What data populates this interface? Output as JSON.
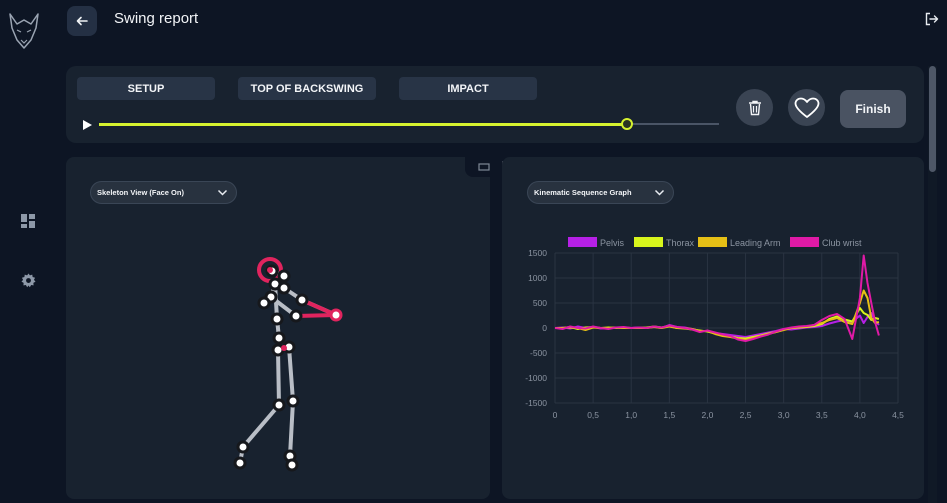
{
  "header": {
    "title": "Swing report"
  },
  "sidebar": {
    "logo": "wolf-logo",
    "items": [
      {
        "name": "dashboard",
        "icon": "dashboard-icon"
      },
      {
        "name": "settings",
        "icon": "gear-icon"
      }
    ]
  },
  "phases": [
    "SETUP",
    "TOP OF BACKSWING",
    "IMPACT"
  ],
  "playback": {
    "progress": 0.851
  },
  "actions": {
    "finish_label": "Finish",
    "delete_icon": "trash-icon",
    "favorite_icon": "heart-icon"
  },
  "skeleton_panel": {
    "view_label": "Skeleton View (Face On)"
  },
  "graph_panel": {
    "view_label": "Kinematic Sequence Graph"
  },
  "colors": {
    "accent": "#d6f22f",
    "pelvis": "#b620e6",
    "thorax": "#d8f51c",
    "leading_arm": "#e6c016",
    "club_wrist": "#e01aa6",
    "skeleton_joint": "#e0245e"
  },
  "chart_data": {
    "type": "line",
    "legend_position": "top",
    "grid": true,
    "xlim": [
      0,
      4.5
    ],
    "ylim": [
      -1500,
      1500
    ],
    "x_ticks": [
      "0",
      "0,5",
      "1,0",
      "1,5",
      "2,0",
      "2,5",
      "3,0",
      "3,5",
      "4,0",
      "4,5"
    ],
    "y_ticks": [
      "1500",
      "1000",
      "500",
      "0",
      "-500",
      "-1000",
      "-1500"
    ],
    "x": [
      0,
      0.1,
      0.2,
      0.3,
      0.4,
      0.5,
      0.6,
      0.7,
      0.8,
      0.9,
      1.0,
      1.1,
      1.2,
      1.3,
      1.4,
      1.5,
      1.6,
      1.7,
      1.8,
      1.9,
      2.0,
      2.1,
      2.2,
      2.3,
      2.4,
      2.5,
      2.6,
      2.7,
      2.8,
      2.9,
      3.0,
      3.1,
      3.2,
      3.3,
      3.4,
      3.5,
      3.6,
      3.7,
      3.8,
      3.9,
      4.0,
      4.05,
      4.1,
      4.15,
      4.2,
      4.25
    ],
    "series": [
      {
        "name": "Pelvis",
        "color": "#b620e6",
        "values": [
          0,
          10,
          -10,
          30,
          0,
          20,
          -10,
          0,
          10,
          0,
          0,
          10,
          0,
          20,
          0,
          60,
          20,
          10,
          -20,
          -60,
          -60,
          -100,
          -120,
          -140,
          -160,
          -180,
          -150,
          -120,
          -90,
          -60,
          -20,
          -30,
          -10,
          10,
          20,
          40,
          90,
          130,
          160,
          120,
          250,
          100,
          220,
          300,
          150,
          60
        ]
      },
      {
        "name": "Thorax",
        "color": "#d8f51c",
        "values": [
          0,
          0,
          20,
          -20,
          10,
          20,
          0,
          10,
          0,
          10,
          0,
          0,
          10,
          30,
          10,
          40,
          0,
          -10,
          -30,
          -50,
          -70,
          -110,
          -150,
          -170,
          -200,
          -210,
          -180,
          -150,
          -110,
          -80,
          -30,
          0,
          10,
          20,
          40,
          80,
          180,
          230,
          170,
          130,
          400,
          300,
          260,
          160,
          200,
          180
        ]
      },
      {
        "name": "Leading Arm",
        "color": "#e6c016",
        "values": [
          0,
          0,
          10,
          0,
          -40,
          10,
          0,
          0,
          10,
          0,
          0,
          0,
          0,
          20,
          0,
          30,
          0,
          0,
          -20,
          -60,
          -60,
          -120,
          -160,
          -180,
          -210,
          -240,
          -200,
          -160,
          -120,
          -80,
          -40,
          0,
          20,
          30,
          60,
          100,
          160,
          200,
          120,
          80,
          500,
          750,
          600,
          200,
          100,
          120
        ]
      },
      {
        "name": "Club wrist",
        "color": "#e01aa6",
        "values": [
          0,
          -20,
          30,
          0,
          -10,
          30,
          0,
          -20,
          10,
          20,
          0,
          10,
          0,
          30,
          10,
          50,
          20,
          0,
          -30,
          -80,
          -50,
          -90,
          -130,
          -160,
          -230,
          -260,
          -220,
          -170,
          -130,
          -70,
          -20,
          10,
          30,
          40,
          60,
          160,
          240,
          280,
          180,
          -220,
          600,
          1450,
          900,
          500,
          120,
          -150
        ]
      }
    ]
  }
}
